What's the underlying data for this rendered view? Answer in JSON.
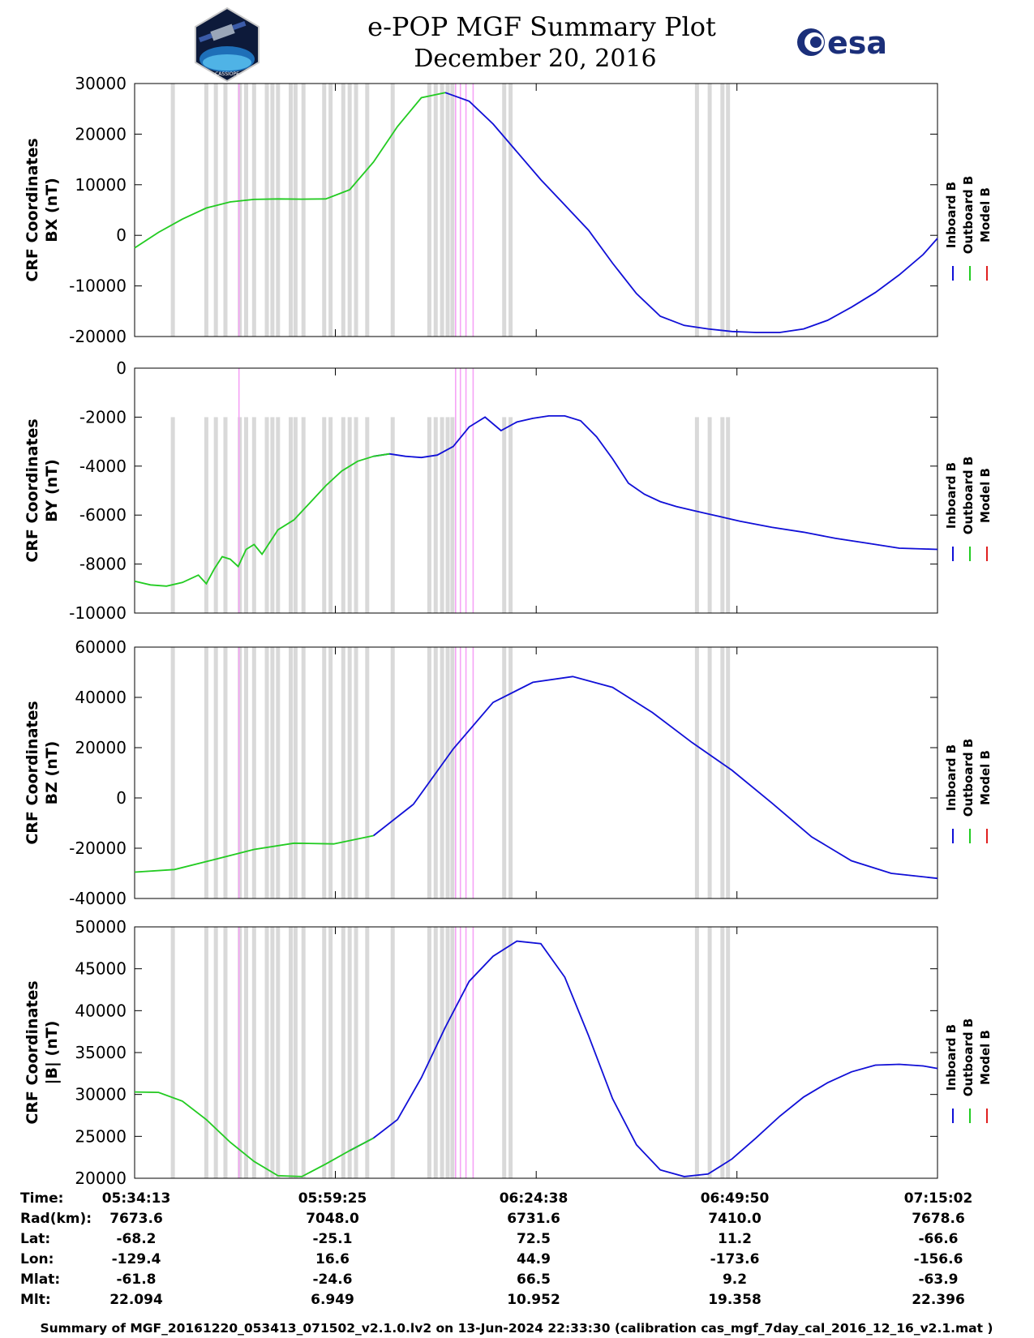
{
  "header": {
    "title": "e-POP MGF Summary Plot",
    "date": "December 20, 2016",
    "logo_left": "CASSIOPE",
    "logo_right": "esa"
  },
  "colors": {
    "inboard": "#1010d8",
    "outboard": "#22cc22",
    "model": "#e02020",
    "gap_gray": "#d9d9d9",
    "gap_magenta": "#f6a3f6"
  },
  "legend": [
    "Inboard B",
    "Outboard B",
    "Model B"
  ],
  "chart_data": [
    {
      "type": "line",
      "ylabel_line1": "CRF Coordinates",
      "ylabel_line2": "BX (nT)",
      "ylim": [
        -20000,
        30000
      ],
      "yticks": [
        "30000",
        "20000",
        "10000",
        "0",
        "-10000",
        "-20000"
      ],
      "ytick_values": [
        30000,
        20000,
        10000,
        0,
        -10000,
        -20000
      ],
      "x_minutes": [
        0,
        3,
        6,
        9,
        12,
        15,
        18,
        21,
        24,
        27,
        30,
        33,
        36,
        39,
        42,
        45,
        48,
        51,
        54,
        57,
        60,
        63,
        66,
        69,
        72,
        75,
        78,
        81,
        84,
        87,
        90,
        93,
        96,
        99,
        100.8
      ],
      "values": [
        -2500,
        600,
        3200,
        5400,
        6600,
        7100,
        7200,
        7150,
        7200,
        9000,
        14500,
        21500,
        27200,
        28200,
        26500,
        22000,
        16500,
        11000,
        6000,
        1000,
        -5500,
        -11500,
        -16000,
        -17800,
        -18500,
        -19000,
        -19200,
        -19200,
        -18500,
        -16800,
        -14200,
        -11300,
        -7800,
        -3800,
        -600
      ],
      "outboard_until_minute": 40.3
    },
    {
      "type": "line",
      "ylabel_line1": "CRF Coordinates",
      "ylabel_line2": "BY (nT)",
      "ylim": [
        -10000,
        0
      ],
      "yticks": [
        "0",
        "-2000",
        "-4000",
        "-6000",
        "-8000",
        "-10000"
      ],
      "ytick_values": [
        0,
        -2000,
        -4000,
        -6000,
        -8000,
        -10000
      ],
      "x_minutes": [
        0,
        2,
        4,
        6,
        8,
        9,
        10,
        11,
        12,
        13,
        14,
        15,
        16,
        18,
        20,
        22,
        24,
        26,
        28,
        30,
        32,
        34,
        36,
        38,
        40,
        42,
        44,
        46,
        48,
        50,
        52,
        54,
        56,
        58,
        60,
        62,
        64,
        66,
        68,
        70,
        72,
        74,
        76,
        80,
        84,
        88,
        92,
        96,
        100.8
      ],
      "values": [
        -8700,
        -8850,
        -8900,
        -8750,
        -8450,
        -8800,
        -8200,
        -7700,
        -7800,
        -8100,
        -7400,
        -7200,
        -7600,
        -6600,
        -6200,
        -5500,
        -4800,
        -4200,
        -3800,
        -3600,
        -3500,
        -3600,
        -3650,
        -3550,
        -3200,
        -2400,
        -2000,
        -2550,
        -2200,
        -2050,
        -1950,
        -1950,
        -2150,
        -2800,
        -3700,
        -4700,
        -5150,
        -5450,
        -5650,
        -5800,
        -5950,
        -6100,
        -6250,
        -6500,
        -6700,
        -6950,
        -7150,
        -7350,
        -7400
      ],
      "outboard_until_minute": 33
    },
    {
      "type": "line",
      "ylabel_line1": "CRF Coordinates",
      "ylabel_line2": "BZ (nT)",
      "ylim": [
        -40000,
        60000
      ],
      "yticks": [
        "60000",
        "40000",
        "20000",
        "0",
        "-20000",
        "-40000"
      ],
      "ytick_values": [
        60000,
        40000,
        20000,
        0,
        -20000,
        -40000
      ],
      "x_minutes": [
        0,
        5,
        10,
        15,
        20,
        25,
        30,
        35,
        40,
        45,
        50,
        55,
        60,
        65,
        70,
        75,
        80,
        85,
        90,
        95,
        100.8
      ],
      "values": [
        -29500,
        -28500,
        -24500,
        -20500,
        -18000,
        -18300,
        -15000,
        -2500,
        19500,
        38000,
        46000,
        48300,
        44000,
        34000,
        22000,
        11000,
        -2000,
        -15500,
        -25000,
        -30000,
        -32000
      ],
      "outboard_until_minute": 30
    },
    {
      "type": "line",
      "ylabel_line1": "CRF Coordinates",
      "ylabel_line2": "|B| (nT)",
      "ylim": [
        20000,
        50000
      ],
      "yticks": [
        "50000",
        "45000",
        "40000",
        "35000",
        "30000",
        "25000",
        "20000"
      ],
      "ytick_values": [
        50000,
        45000,
        40000,
        35000,
        30000,
        25000,
        20000
      ],
      "x_minutes": [
        0,
        3,
        6,
        9,
        12,
        15,
        18,
        21,
        24,
        27,
        30,
        33,
        36,
        39,
        42,
        45,
        48,
        51,
        54,
        57,
        60,
        63,
        66,
        69,
        72,
        75,
        78,
        81,
        84,
        87,
        90,
        93,
        96,
        99,
        100.8
      ],
      "values": [
        30300,
        30250,
        29200,
        27000,
        24300,
        22000,
        20300,
        20200,
        21700,
        23300,
        24800,
        27000,
        32000,
        38000,
        43500,
        46500,
        48300,
        48000,
        44000,
        37000,
        29500,
        24000,
        21000,
        20200,
        20500,
        22300,
        24800,
        27400,
        29700,
        31400,
        32700,
        33500,
        33600,
        33400,
        33100
      ],
      "outboard_until_minute": 30
    }
  ],
  "gaps_minutes": {
    "gray": [
      4.8,
      9,
      10.2,
      11.4,
      13.2,
      14,
      15,
      16.6,
      17.3,
      18,
      19.6,
      20.2,
      21.2,
      23.8,
      24.6,
      26.2,
      27,
      27.8,
      29.2,
      32.4,
      37,
      37.8,
      38.6,
      39.3,
      39.9,
      46.4,
      47.2,
      70.6,
      72.2,
      73.8,
      74.5
    ],
    "magenta": [
      13.1,
      40.3,
      40.9,
      41.6,
      42.5
    ]
  },
  "bottom_table": {
    "row_labels": [
      "Time:",
      "Rad(km):",
      "Lat:",
      "Lon:",
      "Mlat:",
      "Mlt:"
    ],
    "columns": [
      [
        "05:34:13",
        "7673.6",
        "-68.2",
        "-129.4",
        "-61.8",
        "22.094"
      ],
      [
        "05:59:25",
        "7048.0",
        "-25.1",
        "16.6",
        "-24.6",
        "6.949"
      ],
      [
        "06:24:38",
        "6731.6",
        "72.5",
        "44.9",
        "66.5",
        "10.952"
      ],
      [
        "06:49:50",
        "7410.0",
        "11.2",
        "-173.6",
        "9.2",
        "19.358"
      ],
      [
        "07:15:02",
        "7678.6",
        "-66.6",
        "-156.6",
        "-63.9",
        "22.396"
      ]
    ]
  },
  "footer": "Summary of MGF_20161220_053413_071502_v2.1.0.lv2 on 13-Jun-2024 22:33:30 (calibration cas_mgf_7day_cal_2016_12_16_v2.1.mat )"
}
